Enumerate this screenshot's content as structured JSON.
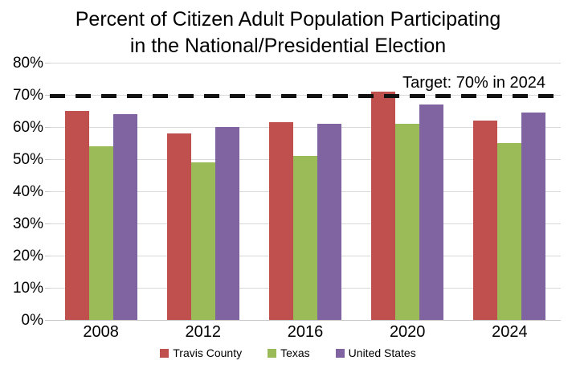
{
  "chart_data": {
    "type": "bar",
    "title": "Percent of Citizen Adult Population Participating in the National/Presidential Election",
    "title_lines": [
      "Percent of Citizen Adult Population Participating",
      "in the National/Presidential Election"
    ],
    "categories": [
      "2008",
      "2012",
      "2016",
      "2020",
      "2024"
    ],
    "series": [
      {
        "name": "Travis County",
        "color": "#c0504d",
        "values": [
          65,
          58,
          61.5,
          71,
          62
        ]
      },
      {
        "name": "Texas",
        "color": "#9bbb59",
        "values": [
          54,
          49,
          51,
          61,
          55
        ]
      },
      {
        "name": "United States",
        "color": "#8064a2",
        "values": [
          64,
          60,
          61,
          67,
          64.5
        ]
      }
    ],
    "ylim": [
      0,
      80
    ],
    "ytick_step": 10,
    "yticks": [
      "80%",
      "70%",
      "60%",
      "50%",
      "40%",
      "30%",
      "20%",
      "10%",
      "0%"
    ],
    "xlabel": "",
    "ylabel": "",
    "grid": true,
    "legend_position": "bottom",
    "target_line": {
      "value": 70,
      "label": "Target: 70% in 2024",
      "color": "#111111",
      "style": "dashed"
    },
    "gridline_color": "#d9d9d9"
  }
}
